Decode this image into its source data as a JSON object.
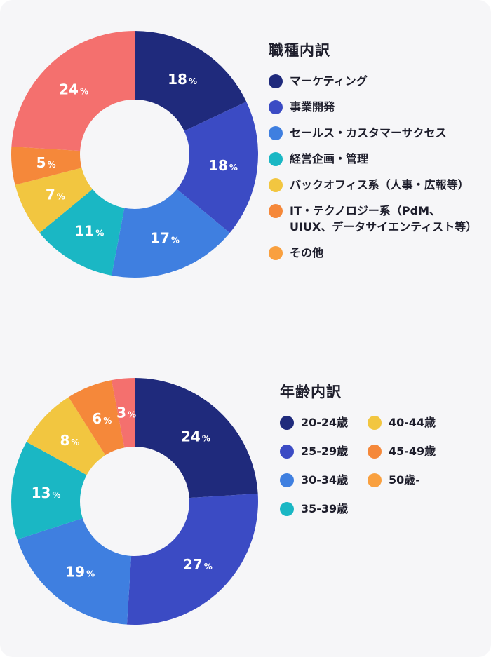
{
  "chart_data": [
    {
      "type": "pie",
      "title": "職種内訳",
      "categories": [
        "マーケティング",
        "事業開発",
        "セールス・カスタマーサクセス",
        "経営企画・管理",
        "バックオフィス系（人事・広報等）",
        "IT・テクノロジー系（PdM、UIUX、データサイエンティスト等）",
        "その他"
      ],
      "values": [
        18,
        18,
        17,
        11,
        7,
        5,
        24
      ],
      "labels": [
        "18",
        "18",
        "17",
        "11",
        "7",
        "5",
        "24"
      ],
      "unit": "%",
      "colors": [
        "#1f2a7c",
        "#3b4bc4",
        "#3f7fe0",
        "#1ab7c4",
        "#f2c640",
        "#f5883a",
        "#f4706e"
      ],
      "legend_colors": [
        "#1f2a7c",
        "#3b4bc4",
        "#3f7fe0",
        "#1ab7c4",
        "#f2c640",
        "#f5883a",
        "#f9a03f"
      ]
    },
    {
      "type": "pie",
      "title": "年齢内訳",
      "categories": [
        "20-24歳",
        "25-29歳",
        "30-34歳",
        "35-39歳",
        "40-44歳",
        "45-49歳",
        "50歳-"
      ],
      "values": [
        24,
        27,
        19,
        13,
        8,
        6,
        3
      ],
      "labels": [
        "24",
        "27",
        "19",
        "13",
        "8",
        "6",
        "3"
      ],
      "unit": "%",
      "colors": [
        "#1f2a7c",
        "#3b4bc4",
        "#3f7fe0",
        "#1ab7c4",
        "#f2c640",
        "#f5883a",
        "#f4706e"
      ],
      "legend_colors": [
        "#1f2a7c",
        "#3b4bc4",
        "#3f7fe0",
        "#1ab7c4",
        "#f2c640",
        "#f5883a",
        "#f9a03f"
      ]
    }
  ]
}
